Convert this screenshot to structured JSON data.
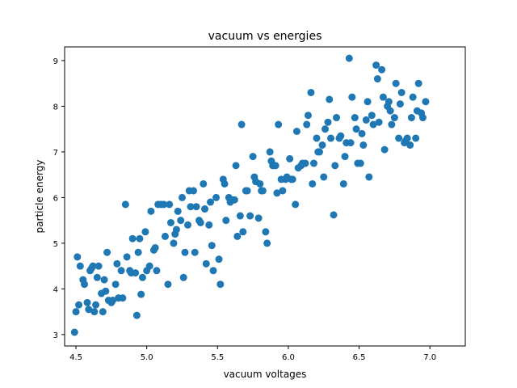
{
  "chart_data": {
    "type": "scatter",
    "title": "vacuum vs energies",
    "xlabel": "vacuum voltages",
    "ylabel": "particle energy",
    "xlim": [
      4.42,
      7.25
    ],
    "ylim": [
      2.75,
      9.3
    ],
    "xticks": [
      4.5,
      5.0,
      5.5,
      6.0,
      6.5,
      7.0
    ],
    "xtick_labels": [
      "4.5",
      "5.0",
      "5.5",
      "6.0",
      "6.5",
      "7.0"
    ],
    "yticks": [
      3,
      4,
      5,
      6,
      7,
      8,
      9
    ],
    "ytick_labels": [
      "3",
      "4",
      "5",
      "6",
      "7",
      "8",
      "9"
    ],
    "grid": false,
    "legend": "none",
    "marker_color": "#1f77b4",
    "points": [
      [
        4.49,
        3.05
      ],
      [
        4.5,
        3.5
      ],
      [
        4.52,
        3.65
      ],
      [
        4.51,
        4.7
      ],
      [
        4.53,
        4.5
      ],
      [
        4.55,
        4.2
      ],
      [
        4.56,
        4.1
      ],
      [
        4.58,
        3.7
      ],
      [
        4.59,
        3.55
      ],
      [
        4.6,
        4.4
      ],
      [
        4.61,
        4.45
      ],
      [
        4.62,
        4.5
      ],
      [
        4.63,
        3.5
      ],
      [
        4.64,
        3.65
      ],
      [
        4.65,
        4.25
      ],
      [
        4.66,
        4.5
      ],
      [
        4.68,
        3.9
      ],
      [
        4.69,
        3.5
      ],
      [
        4.7,
        4.2
      ],
      [
        4.71,
        3.95
      ],
      [
        4.72,
        4.8
      ],
      [
        4.73,
        3.75
      ],
      [
        4.75,
        3.7
      ],
      [
        4.76,
        3.75
      ],
      [
        4.78,
        4.1
      ],
      [
        4.79,
        4.55
      ],
      [
        4.8,
        3.8
      ],
      [
        4.82,
        4.4
      ],
      [
        4.83,
        3.8
      ],
      [
        4.85,
        5.85
      ],
      [
        4.86,
        4.7
      ],
      [
        4.88,
        4.4
      ],
      [
        4.89,
        4.35
      ],
      [
        4.9,
        5.1
      ],
      [
        4.92,
        4.35
      ],
      [
        4.93,
        3.42
      ],
      [
        4.94,
        4.8
      ],
      [
        4.95,
        5.1
      ],
      [
        4.96,
        3.88
      ],
      [
        4.97,
        4.25
      ],
      [
        4.99,
        5.25
      ],
      [
        5.0,
        4.4
      ],
      [
        5.02,
        4.5
      ],
      [
        5.03,
        5.7
      ],
      [
        5.05,
        4.85
      ],
      [
        5.06,
        4.9
      ],
      [
        5.07,
        4.4
      ],
      [
        5.08,
        5.85
      ],
      [
        5.1,
        5.85
      ],
      [
        5.12,
        5.85
      ],
      [
        5.13,
        5.15
      ],
      [
        5.15,
        4.1
      ],
      [
        5.16,
        5.85
      ],
      [
        5.17,
        5.45
      ],
      [
        5.19,
        5.0
      ],
      [
        5.2,
        5.2
      ],
      [
        5.21,
        5.3
      ],
      [
        5.22,
        5.7
      ],
      [
        5.24,
        5.5
      ],
      [
        5.25,
        6.0
      ],
      [
        5.26,
        4.25
      ],
      [
        5.27,
        4.8
      ],
      [
        5.29,
        5.4
      ],
      [
        5.3,
        6.15
      ],
      [
        5.31,
        5.8
      ],
      [
        5.33,
        6.15
      ],
      [
        5.34,
        4.8
      ],
      [
        5.35,
        5.8
      ],
      [
        5.37,
        5.5
      ],
      [
        5.38,
        5.45
      ],
      [
        5.4,
        6.3
      ],
      [
        5.41,
        5.75
      ],
      [
        5.42,
        4.55
      ],
      [
        5.44,
        5.4
      ],
      [
        5.45,
        5.9
      ],
      [
        5.46,
        4.95
      ],
      [
        5.47,
        4.4
      ],
      [
        5.49,
        6.0
      ],
      [
        5.51,
        4.65
      ],
      [
        5.52,
        4.1
      ],
      [
        5.54,
        6.4
      ],
      [
        5.55,
        6.3
      ],
      [
        5.56,
        5.5
      ],
      [
        5.58,
        6.0
      ],
      [
        5.59,
        5.9
      ],
      [
        5.6,
        5.95
      ],
      [
        5.62,
        5.95
      ],
      [
        5.63,
        6.7
      ],
      [
        5.64,
        5.15
      ],
      [
        5.66,
        5.6
      ],
      [
        5.67,
        7.6
      ],
      [
        5.68,
        5.25
      ],
      [
        5.7,
        6.15
      ],
      [
        5.71,
        6.15
      ],
      [
        5.73,
        5.6
      ],
      [
        5.75,
        6.9
      ],
      [
        5.76,
        6.45
      ],
      [
        5.77,
        6.35
      ],
      [
        5.79,
        5.55
      ],
      [
        5.8,
        6.3
      ],
      [
        5.81,
        6.15
      ],
      [
        5.82,
        6.15
      ],
      [
        5.84,
        5.25
      ],
      [
        5.85,
        5.0
      ],
      [
        5.87,
        7.0
      ],
      [
        5.88,
        6.8
      ],
      [
        5.89,
        6.7
      ],
      [
        5.91,
        6.7
      ],
      [
        5.92,
        6.1
      ],
      [
        5.93,
        7.6
      ],
      [
        5.95,
        6.4
      ],
      [
        5.96,
        6.15
      ],
      [
        5.98,
        6.4
      ],
      [
        5.99,
        6.45
      ],
      [
        6.01,
        6.85
      ],
      [
        6.02,
        6.4
      ],
      [
        6.03,
        6.4
      ],
      [
        6.05,
        5.85
      ],
      [
        6.06,
        7.45
      ],
      [
        6.07,
        6.65
      ],
      [
        6.09,
        6.7
      ],
      [
        6.1,
        6.75
      ],
      [
        6.12,
        6.75
      ],
      [
        6.13,
        7.6
      ],
      [
        6.14,
        7.8
      ],
      [
        6.16,
        8.3
      ],
      [
        6.17,
        6.3
      ],
      [
        6.18,
        6.75
      ],
      [
        6.2,
        7.3
      ],
      [
        6.21,
        7.0
      ],
      [
        6.22,
        7.0
      ],
      [
        6.24,
        7.15
      ],
      [
        6.25,
        6.45
      ],
      [
        6.26,
        7.5
      ],
      [
        6.28,
        7.65
      ],
      [
        6.29,
        8.15
      ],
      [
        6.3,
        7.3
      ],
      [
        6.32,
        5.62
      ],
      [
        6.33,
        6.7
      ],
      [
        6.34,
        7.75
      ],
      [
        6.36,
        7.3
      ],
      [
        6.37,
        7.35
      ],
      [
        6.39,
        6.3
      ],
      [
        6.4,
        6.9
      ],
      [
        6.41,
        7.2
      ],
      [
        6.43,
        9.05
      ],
      [
        6.44,
        7.2
      ],
      [
        6.45,
        8.2
      ],
      [
        6.47,
        7.75
      ],
      [
        6.48,
        7.5
      ],
      [
        6.49,
        6.75
      ],
      [
        6.51,
        6.75
      ],
      [
        6.52,
        7.4
      ],
      [
        6.53,
        7.15
      ],
      [
        6.55,
        7.7
      ],
      [
        6.56,
        8.1
      ],
      [
        6.57,
        6.45
      ],
      [
        6.59,
        7.8
      ],
      [
        6.6,
        7.6
      ],
      [
        6.62,
        8.9
      ],
      [
        6.63,
        8.6
      ],
      [
        6.64,
        7.65
      ],
      [
        6.66,
        8.8
      ],
      [
        6.67,
        8.2
      ],
      [
        6.68,
        7.05
      ],
      [
        6.7,
        8.0
      ],
      [
        6.71,
        8.1
      ],
      [
        6.72,
        7.9
      ],
      [
        6.73,
        7.6
      ],
      [
        6.75,
        7.75
      ],
      [
        6.76,
        8.5
      ],
      [
        6.78,
        7.3
      ],
      [
        6.79,
        8.05
      ],
      [
        6.8,
        8.3
      ],
      [
        6.82,
        7.2
      ],
      [
        6.83,
        7.25
      ],
      [
        6.84,
        7.3
      ],
      [
        6.86,
        7.15
      ],
      [
        6.87,
        7.75
      ],
      [
        6.88,
        8.2
      ],
      [
        6.9,
        7.3
      ],
      [
        6.91,
        7.9
      ],
      [
        6.92,
        8.5
      ],
      [
        6.94,
        7.85
      ],
      [
        6.95,
        7.75
      ],
      [
        6.97,
        8.1
      ]
    ]
  }
}
